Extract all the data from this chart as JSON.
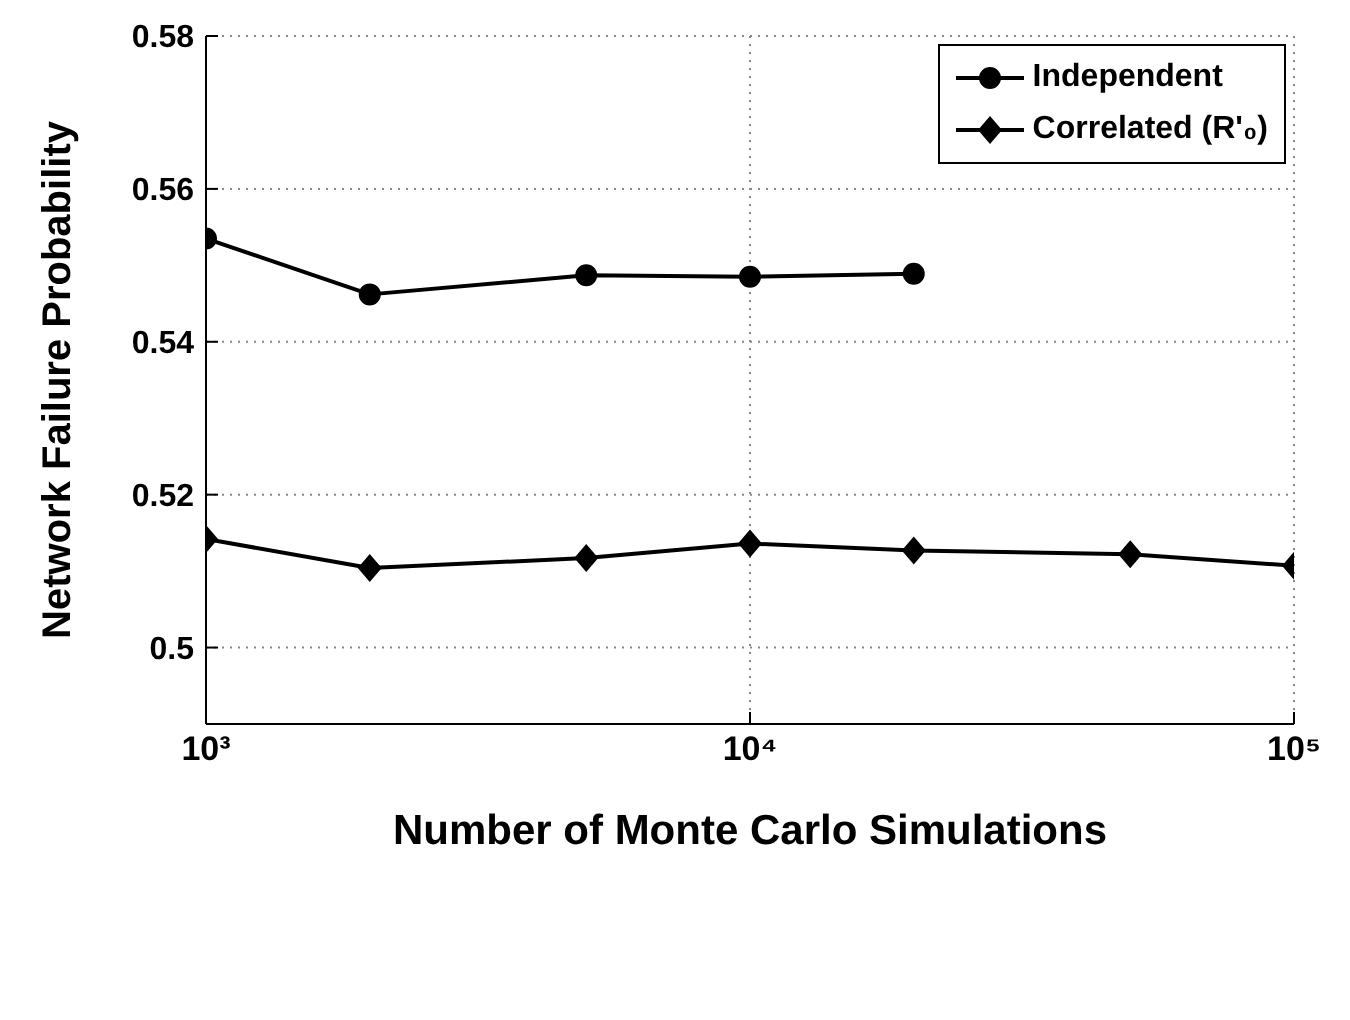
{
  "chart_data": {
    "type": "line",
    "xlabel": "Number of Monte Carlo Simulations",
    "ylabel": "Network Failure Probability",
    "log": "x",
    "xlim": [
      1000,
      100000
    ],
    "xticks": [
      {
        "value": 1000,
        "label": "10³"
      },
      {
        "value": 10000,
        "label": "10⁴"
      },
      {
        "value": 100000,
        "label": "10⁵"
      }
    ],
    "ylim": [
      0.49,
      0.58
    ],
    "yticks": [
      0.5,
      0.52,
      0.54,
      0.56,
      0.58
    ],
    "grid": true,
    "legend": "top right",
    "line_style": "solid",
    "series": [
      {
        "name": "Independent",
        "color": "#000000",
        "marker": "circle",
        "x": [
          1000,
          2000,
          5000,
          10000,
          20000
        ],
        "values": [
          0.5535,
          0.5462,
          0.5487,
          0.5485,
          0.5489
        ]
      },
      {
        "name": "Correlated (R'₀)",
        "color": "#000000",
        "marker": "diamond",
        "x": [
          1000,
          2000,
          5000,
          10000,
          20000,
          50000,
          100000
        ],
        "values": [
          0.5142,
          0.5104,
          0.5117,
          0.5136,
          0.5127,
          0.5122,
          0.5107
        ]
      }
    ]
  }
}
